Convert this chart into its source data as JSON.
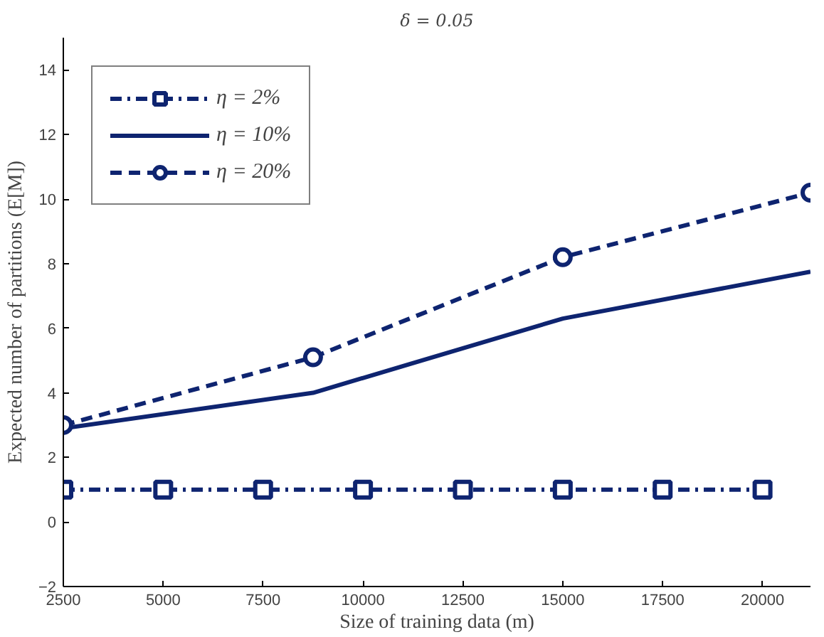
{
  "chart_data": {
    "type": "line",
    "title": "δ = 0.05",
    "xlabel": "Size of training data (m)",
    "ylabel": "Expected number of partitions (E[M])",
    "xlim": [
      2500,
      21200
    ],
    "xticks": [
      2500,
      5000,
      7500,
      10000,
      12500,
      15000,
      17500,
      20000
    ],
    "ylim": [
      -2,
      15
    ],
    "yticks": [
      -2,
      0,
      2,
      4,
      6,
      8,
      10,
      12,
      14
    ],
    "grid": false,
    "legend": "top left",
    "series": [
      {
        "name": "η = 2%",
        "color": "#0e2470",
        "marker": "square",
        "line_style": "dashdot",
        "x": [
          2500,
          5000,
          7500,
          10000,
          12500,
          15000,
          17500,
          20000
        ],
        "values": [
          1,
          1,
          1,
          1,
          1,
          1,
          1,
          1
        ]
      },
      {
        "name": "η = 10%",
        "color": "#0e2470",
        "marker": "none",
        "line_style": "solid",
        "x": [
          2500,
          8750,
          15000,
          21200
        ],
        "values": [
          2.9,
          4.0,
          6.3,
          7.75
        ]
      },
      {
        "name": "η = 20%",
        "color": "#0e2470",
        "marker": "circle",
        "line_style": "dashed",
        "x": [
          2500,
          8750,
          15000,
          21200
        ],
        "values": [
          3.0,
          5.1,
          8.2,
          10.2
        ]
      }
    ]
  }
}
